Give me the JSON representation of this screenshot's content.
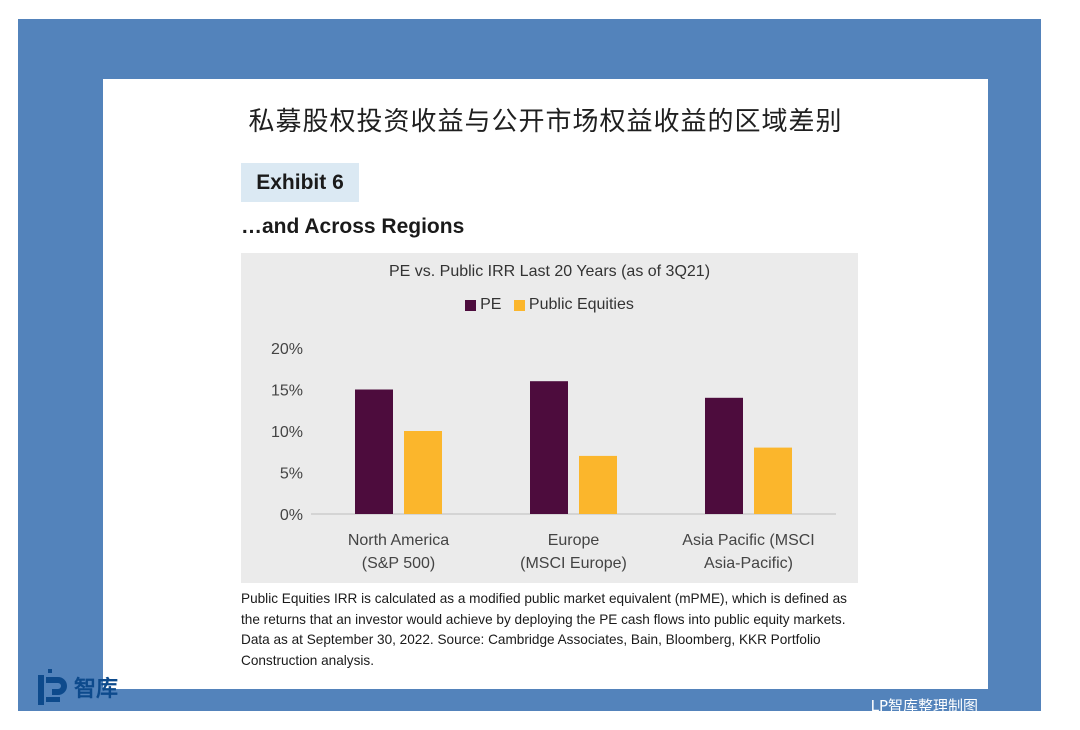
{
  "page_title": "私募股权投资收益与公开市场权益收益的区域差别",
  "exhibit_label": "Exhibit 6",
  "subtitle": "…and Across Regions",
  "footnote": "Public Equities IRR is calculated as a modified public market equivalent (mPME), which is defined as the returns that an investor would achieve by deploying the PE cash flows into public equity markets. Data as at September 30, 2022. Source: Cambridge Associates, Bain, Bloomberg, KKR Portfolio Construction analysis.",
  "logo": {
    "text": "智库",
    "icon": "lp-logo-icon"
  },
  "credit": "LP智库整理制图",
  "colors": {
    "frame": "#5383bb",
    "pe": "#4d0c3d",
    "public": "#fbb62c",
    "chart_bg": "#ebebeb"
  },
  "chart_data": {
    "type": "bar",
    "title": "PE vs. Public IRR Last 20 Years (as of 3Q21)",
    "categories": [
      [
        "North America",
        "(S&P 500)"
      ],
      [
        "Europe",
        "(MSCI Europe)"
      ],
      [
        "Asia Pacific (MSCI",
        "Asia-Pacific)"
      ]
    ],
    "series": [
      {
        "name": "PE",
        "values": [
          15,
          16,
          14
        ],
        "color": "#4d0c3d"
      },
      {
        "name": "Public Equities",
        "values": [
          10,
          7,
          8
        ],
        "color": "#fbb62c"
      }
    ],
    "yticks": [
      "0%",
      "5%",
      "10%",
      "15%",
      "20%"
    ],
    "ylim": [
      0,
      20
    ],
    "legend_position": "top-center",
    "grid": false
  }
}
